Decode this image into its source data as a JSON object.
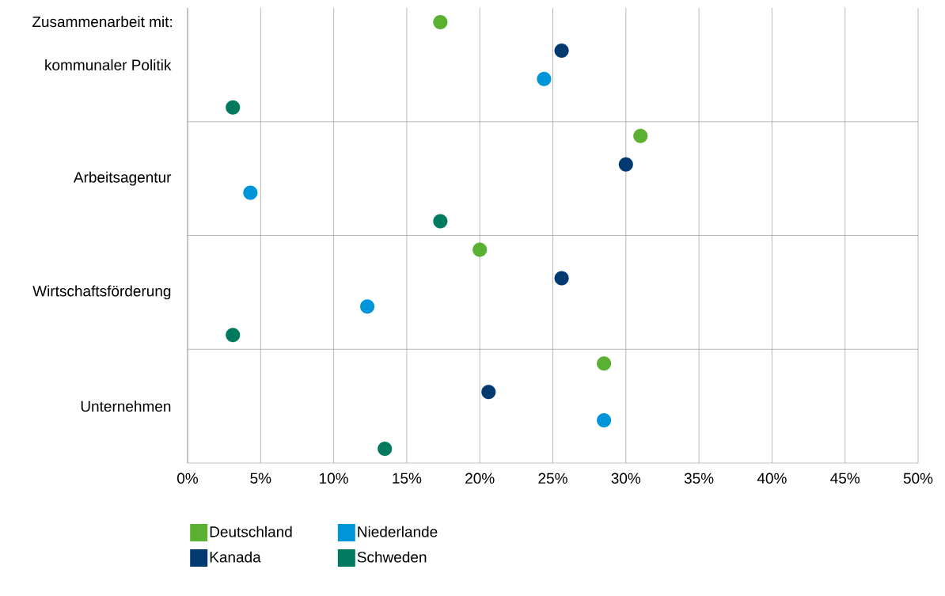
{
  "chart_data": {
    "type": "scatter",
    "orientation": "horizontal",
    "title": "Zusammenarbeit mit:",
    "categories": [
      "kommunaler Politik",
      "Arbeitsagentur",
      "Wirtschaftsförderung",
      "Unternehmen"
    ],
    "series": [
      {
        "name": "Deutschland",
        "color": "#5ab031",
        "values": [
          17.3,
          31.0,
          20.0,
          28.5
        ]
      },
      {
        "name": "Kanada",
        "color": "#003a70",
        "values": [
          25.6,
          30.0,
          25.6,
          20.6
        ]
      },
      {
        "name": "Niederlande",
        "color": "#0095d8",
        "values": [
          24.4,
          4.3,
          12.3,
          28.5
        ]
      },
      {
        "name": "Schweden",
        "color": "#007a5e",
        "values": [
          3.1,
          17.3,
          3.1,
          13.5
        ]
      }
    ],
    "xlim": [
      0,
      50
    ],
    "xticks": [
      {
        "value": 0,
        "label": "0%"
      },
      {
        "value": 5,
        "label": "5%"
      },
      {
        "value": 10,
        "label": "10%"
      },
      {
        "value": 15,
        "label": "15%"
      },
      {
        "value": 20,
        "label": "20%"
      },
      {
        "value": 25,
        "label": "25%"
      },
      {
        "value": 30,
        "label": "30%"
      },
      {
        "value": 35,
        "label": "35%"
      },
      {
        "value": 40,
        "label": "40%"
      },
      {
        "value": 45,
        "label": "45%"
      },
      {
        "value": 50,
        "label": "50%"
      }
    ],
    "grid": true,
    "legend": "bottom",
    "marker": "circle"
  }
}
